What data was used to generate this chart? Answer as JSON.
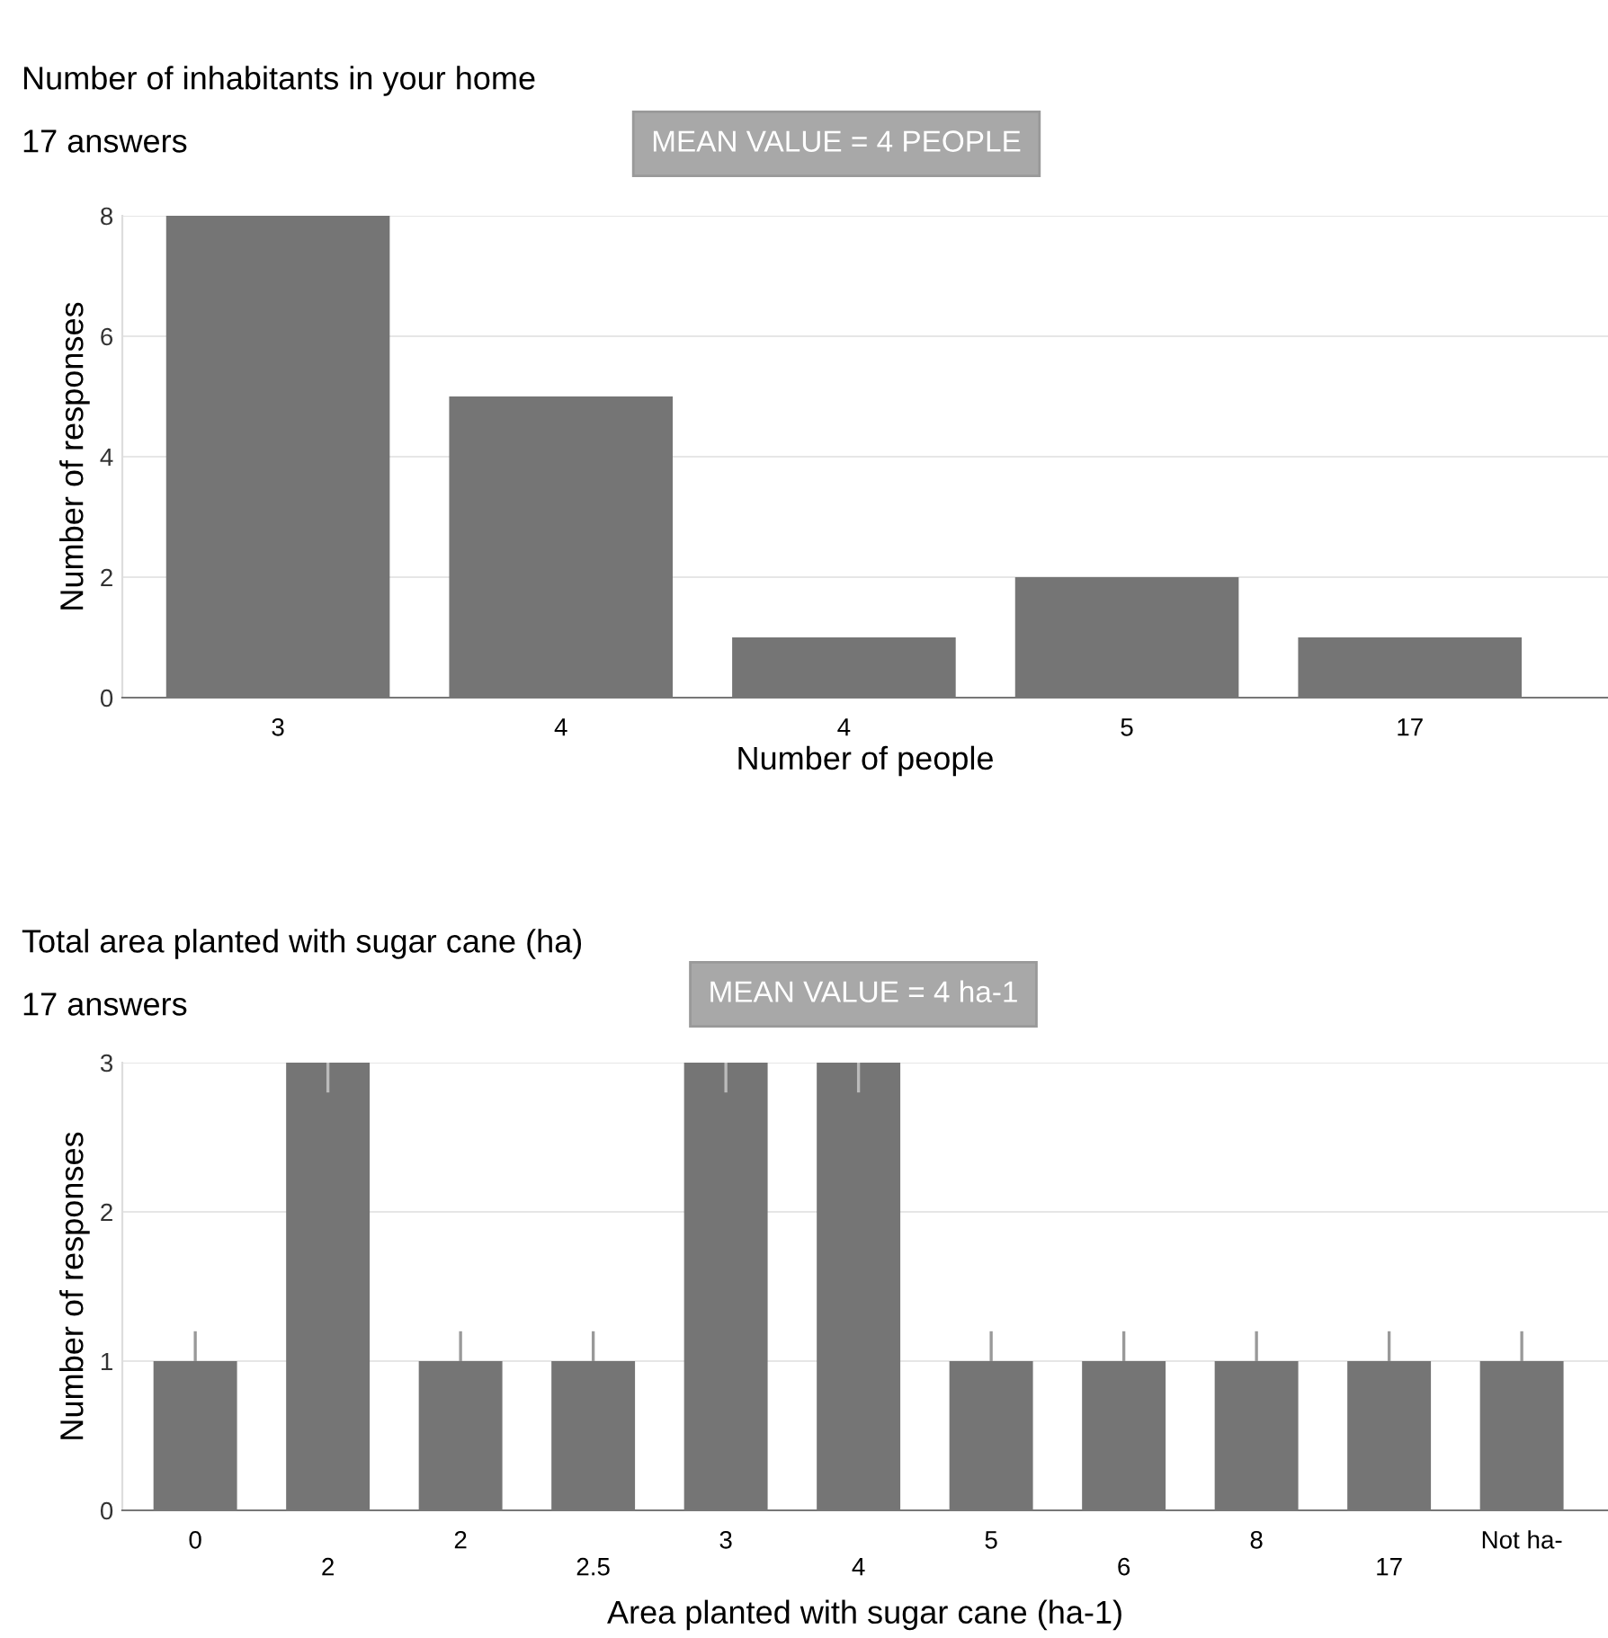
{
  "chart_data": [
    {
      "type": "bar",
      "title": "Number of inhabitants in your home",
      "subtitle": "17 answers",
      "annotations": [
        "MEAN VALUE = 4 PEOPLE"
      ],
      "xlabel": "Number of people",
      "ylabel": "Number of responses",
      "categories": [
        "3",
        "4",
        "4",
        "5",
        "17"
      ],
      "values": [
        8,
        5,
        1,
        2,
        1
      ],
      "color": "#757575",
      "ylim": [
        0,
        8
      ],
      "yticks": [
        0,
        2,
        4,
        6,
        8
      ],
      "grid": "y"
    },
    {
      "type": "bar",
      "title": "Total area planted with sugar cane (ha)",
      "subtitle": "17 answers",
      "annotations": [
        "MEAN VALUE = 4 ha-1"
      ],
      "xlabel": "Area planted with sugar cane (ha-1)",
      "ylabel": "Number of responses",
      "categories": [
        "0",
        "2",
        "2",
        "2.5",
        "3",
        "4",
        "5",
        "6",
        "8",
        "17",
        "Not ha-"
      ],
      "values": [
        1,
        3,
        1,
        1,
        3,
        3,
        1,
        1,
        1,
        1,
        1
      ],
      "errors": [
        [
          1,
          1.2
        ],
        [
          2.8,
          3
        ],
        [
          1,
          1.2
        ],
        [
          1,
          1.2
        ],
        [
          2.8,
          3
        ],
        [
          2.8,
          3
        ],
        [
          1,
          1.2
        ],
        [
          1,
          1.2
        ],
        [
          1,
          1.2
        ],
        [
          1,
          1.2
        ],
        [
          1,
          1.2
        ]
      ],
      "color": "#757575",
      "ylim": [
        0,
        3
      ],
      "yticks": [
        0,
        1,
        2,
        3
      ],
      "grid": "y"
    }
  ]
}
